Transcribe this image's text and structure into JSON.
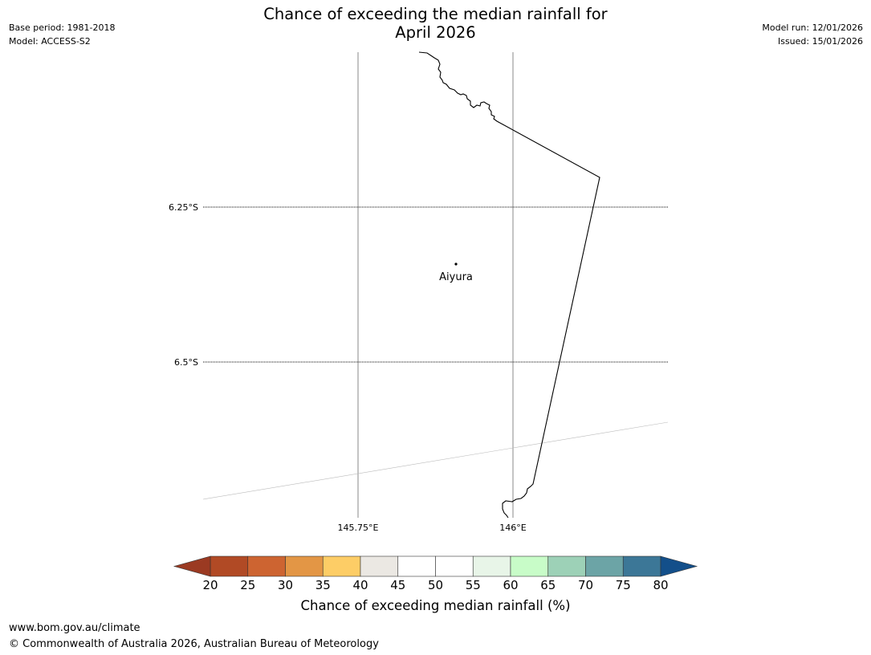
{
  "title": {
    "line1": "Chance of exceeding the median rainfall for",
    "line2": "April 2026"
  },
  "meta_left": {
    "base_period": "Base period: 1981-2018",
    "model": "Model: ACCESS-S2"
  },
  "meta_right": {
    "model_run": "Model run: 12/01/2026",
    "issued": "Issued: 15/01/2026"
  },
  "map": {
    "lat_labels": [
      "6.25°S",
      "6.5°S"
    ],
    "lon_labels": [
      "145.75°E",
      "146°E"
    ],
    "place": {
      "name": "Aiyura"
    },
    "gridline_style": "dotted latitude lines, solid grey longitude lines"
  },
  "colorbar": {
    "ticks": [
      "20",
      "25",
      "30",
      "35",
      "40",
      "45",
      "50",
      "55",
      "60",
      "65",
      "70",
      "75",
      "80"
    ],
    "under_color": "#9b3a22",
    "over_color": "#134f8a",
    "bins": [
      {
        "from": 20,
        "to": 25,
        "color": "#b14a25"
      },
      {
        "from": 25,
        "to": 30,
        "color": "#cd6431"
      },
      {
        "from": 30,
        "to": 35,
        "color": "#e39645"
      },
      {
        "from": 35,
        "to": 40,
        "color": "#fdcd66"
      },
      {
        "from": 40,
        "to": 45,
        "color": "#ebe8e3"
      },
      {
        "from": 45,
        "to": 50,
        "color": "#ffffff"
      },
      {
        "from": 50,
        "to": 55,
        "color": "#ffffff"
      },
      {
        "from": 55,
        "to": 60,
        "color": "#e8f5e8"
      },
      {
        "from": 60,
        "to": 65,
        "color": "#c8fcc8"
      },
      {
        "from": 65,
        "to": 70,
        "color": "#9dd1b7"
      },
      {
        "from": 70,
        "to": 75,
        "color": "#6ca4a6"
      },
      {
        "from": 75,
        "to": 80,
        "color": "#3c7797"
      }
    ],
    "label": "Chance of exceeding median rainfall (%)"
  },
  "footer": {
    "url": "www.bom.gov.au/climate",
    "copyright": "© Commonwealth of Australia 2026, Australian Bureau of Meteorology"
  }
}
